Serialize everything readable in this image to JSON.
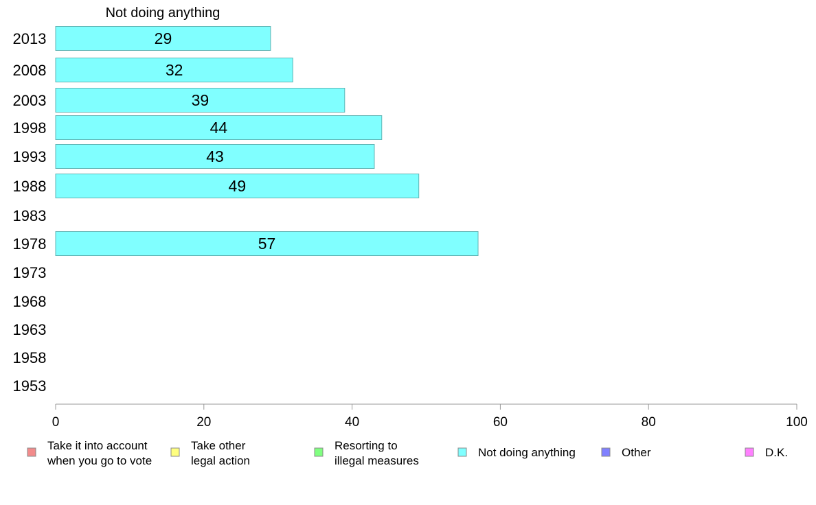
{
  "chart_data": {
    "type": "bar",
    "orientation": "horizontal",
    "panel_title": "Not doing anything",
    "categories": [
      "2013",
      "2008",
      "2003",
      "1998",
      "1993",
      "1988",
      "1983",
      "1978",
      "1973",
      "1968",
      "1963",
      "1958",
      "1953"
    ],
    "series": [
      {
        "name": "Not doing anything",
        "color": "#80FFFF",
        "values": [
          29,
          32,
          39,
          44,
          43,
          49,
          null,
          57,
          null,
          null,
          null,
          null,
          null
        ]
      }
    ],
    "xlim": [
      0,
      100
    ],
    "xticks": [
      0,
      20,
      40,
      60,
      80,
      100
    ],
    "grid": false,
    "legend_position": "bottom",
    "legend": [
      {
        "lines": [
          "Take it into account",
          "when you go to vote"
        ],
        "color": "#F28B8B"
      },
      {
        "lines": [
          "Take other",
          "legal action"
        ],
        "color": "#FFFF80"
      },
      {
        "lines": [
          "Resorting to",
          "illegal measures"
        ],
        "color": "#80FF80"
      },
      {
        "lines": [
          "Not doing anything"
        ],
        "color": "#80FFFF"
      },
      {
        "lines": [
          "Other"
        ],
        "color": "#8080FF"
      },
      {
        "lines": [
          "D.K."
        ],
        "color": "#FF80FF"
      }
    ]
  }
}
